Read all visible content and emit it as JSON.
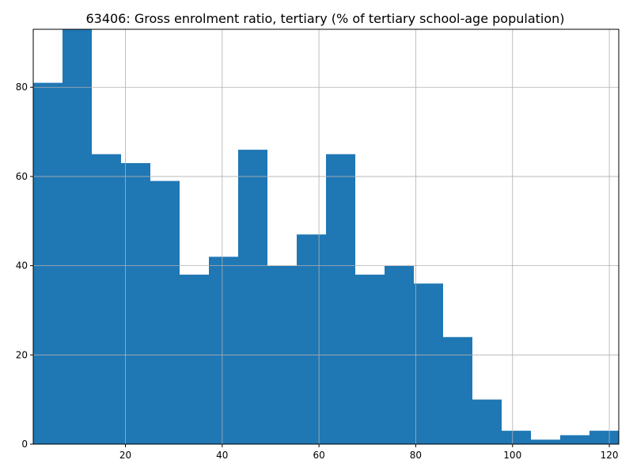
{
  "chart_data": {
    "type": "bar",
    "title": "63406: Gross enrolment ratio, tertiary (% of tertiary school-age population)",
    "xlabel": "",
    "ylabel": "",
    "bin_edges": [
      0.95,
      7.0,
      13.05,
      19.1,
      25.15,
      31.2,
      37.25,
      43.3,
      49.35,
      55.4,
      61.45,
      67.5,
      73.55,
      79.6,
      85.65,
      91.7,
      97.75,
      103.8,
      109.85,
      115.9,
      121.95
    ],
    "values": [
      81,
      93,
      65,
      63,
      59,
      38,
      42,
      66,
      40,
      47,
      65,
      38,
      40,
      36,
      24,
      10,
      3,
      1,
      2,
      3
    ],
    "xlim": [
      0.95,
      121.95
    ],
    "ylim": [
      0,
      93
    ],
    "x_ticks": [
      20,
      40,
      60,
      80,
      100,
      120
    ],
    "y_ticks": [
      0,
      20,
      40,
      60,
      80
    ],
    "grid": true,
    "bar_color": "#1f77b4"
  }
}
